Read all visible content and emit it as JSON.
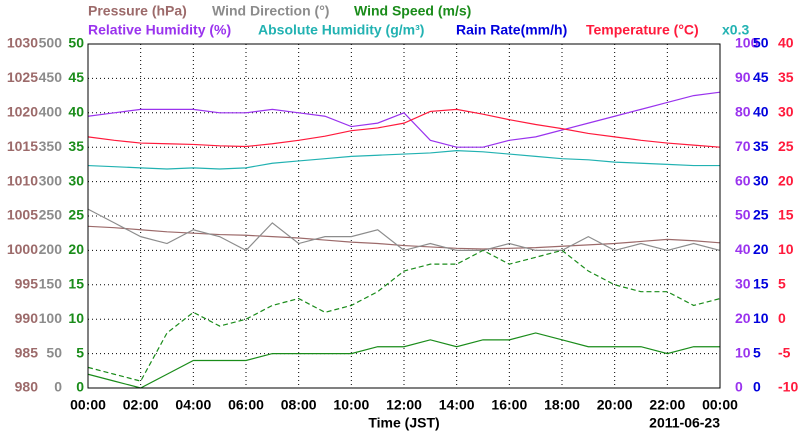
{
  "chart_data": {
    "type": "line",
    "xlabel": "Time (JST)",
    "date": "2011-06-23",
    "grid": true,
    "xlim": [
      0,
      24
    ],
    "xticks": [
      {
        "value": 0,
        "label": "00:00"
      },
      {
        "value": 2,
        "label": "02:00"
      },
      {
        "value": 4,
        "label": "04:00"
      },
      {
        "value": 6,
        "label": "06:00"
      },
      {
        "value": 8,
        "label": "08:00"
      },
      {
        "value": 10,
        "label": "10:00"
      },
      {
        "value": 12,
        "label": "12:00"
      },
      {
        "value": 14,
        "label": "14:00"
      },
      {
        "value": 16,
        "label": "16:00"
      },
      {
        "value": 18,
        "label": "18:00"
      },
      {
        "value": 20,
        "label": "20:00"
      },
      {
        "value": 22,
        "label": "22:00"
      },
      {
        "value": 24,
        "label": "00:00"
      }
    ],
    "axes": [
      {
        "name": "Pressure (hPa)",
        "color": "#9c6a6a",
        "side": "left",
        "ylim": [
          980,
          1030
        ],
        "yticks": [
          980,
          985,
          990,
          995,
          1000,
          1005,
          1010,
          1015,
          1020,
          1025,
          1030
        ]
      },
      {
        "name": "Wind Direction (°)",
        "color": "#8c8c8c",
        "side": "left",
        "ylim": [
          0,
          500
        ],
        "yticks": [
          0,
          50,
          100,
          150,
          200,
          250,
          300,
          350,
          400,
          450,
          500
        ]
      },
      {
        "name": "Wind Speed (m/s)",
        "color": "#1a8c1a",
        "side": "left",
        "ylim": [
          0,
          50
        ],
        "yticks": [
          0,
          5,
          10,
          15,
          20,
          25,
          30,
          35,
          40,
          45,
          50
        ]
      },
      {
        "name": "Relative Humidity (%)",
        "color": "#9a33ee",
        "side": "right",
        "ylim": [
          0,
          100
        ],
        "yticks": [
          0,
          10,
          20,
          30,
          40,
          50,
          60,
          70,
          80,
          90,
          100
        ]
      },
      {
        "name": "Absolute Humidity (g/m³)",
        "color": "#22b2b2",
        "side": "right",
        "ylim": [
          0,
          30
        ],
        "scale_label": "x0.3"
      },
      {
        "name": "Rain Rate(mm/h)",
        "color": "#0000dd",
        "side": "right",
        "ylim": [
          0,
          50
        ],
        "yticks": [
          0,
          5,
          10,
          15,
          20,
          25,
          30,
          35,
          40,
          45,
          50
        ]
      },
      {
        "name": "Temperature (°C)",
        "color": "#ff1a3c",
        "side": "right",
        "ylim": [
          -10,
          40
        ],
        "yticks": [
          -10,
          -5,
          0,
          5,
          10,
          15,
          20,
          25,
          30,
          35,
          40
        ]
      }
    ],
    "x": [
      0,
      1,
      2,
      3,
      4,
      5,
      6,
      7,
      8,
      9,
      10,
      11,
      12,
      13,
      14,
      15,
      16,
      17,
      18,
      19,
      20,
      21,
      22,
      23,
      24
    ],
    "series": [
      {
        "axis": 0,
        "color": "#9c6a6a",
        "style": "solid",
        "values": [
          1003.5,
          1003.3,
          1003,
          1002.7,
          1002.5,
          1002.3,
          1002.2,
          1002,
          1001.8,
          1001.5,
          1001.2,
          1001,
          1000.7,
          1000.5,
          1000.3,
          1000.2,
          1000.3,
          1000.4,
          1000.6,
          1000.8,
          1001,
          1001.3,
          1001.6,
          1001.4,
          1001.1
        ]
      },
      {
        "axis": 1,
        "color": "#8c8c8c",
        "style": "solid",
        "values": [
          260,
          240,
          220,
          210,
          230,
          220,
          200,
          240,
          210,
          220,
          220,
          230,
          200,
          210,
          200,
          200,
          210,
          200,
          200,
          220,
          200,
          210,
          200,
          210,
          200
        ]
      },
      {
        "axis": 2,
        "color": "#1a8c1a",
        "style": "dashed",
        "values": [
          3,
          2,
          1,
          8,
          11,
          9,
          10,
          12,
          13,
          11,
          12,
          14,
          17,
          18,
          18,
          20,
          18,
          19,
          20,
          17,
          15,
          14,
          14,
          12,
          13
        ]
      },
      {
        "axis": 2,
        "color": "#1a8c1a",
        "style": "solid",
        "values": [
          2,
          1,
          0,
          2,
          4,
          4,
          4,
          5,
          5,
          5,
          5,
          6,
          6,
          7,
          6,
          7,
          7,
          8,
          7,
          6,
          6,
          6,
          5,
          6,
          6
        ]
      },
      {
        "axis": 4,
        "color": "#22b2b2",
        "style": "solid",
        "values": [
          19.4,
          19.3,
          19.2,
          19.1,
          19.2,
          19.1,
          19.2,
          19.6,
          19.8,
          20,
          20.2,
          20.3,
          20.4,
          20.5,
          20.7,
          20.6,
          20.4,
          20.2,
          20,
          19.9,
          19.7,
          19.6,
          19.5,
          19.4,
          19.4
        ]
      },
      {
        "axis": 3,
        "color": "#9a33ee",
        "style": "solid",
        "values": [
          79,
          80,
          81,
          81,
          81,
          80,
          80,
          81,
          80,
          79,
          76,
          77,
          80,
          72,
          70,
          70,
          72,
          73,
          75,
          77,
          79,
          81,
          83,
          85,
          86
        ]
      },
      {
        "axis": 6,
        "color": "#ff1a3c",
        "style": "solid",
        "values": [
          26.5,
          26,
          25.6,
          25.5,
          25.4,
          25.2,
          25.1,
          25.5,
          26,
          26.6,
          27.4,
          27.8,
          28.5,
          30.2,
          30.5,
          29.8,
          29,
          28.3,
          27.7,
          27,
          26.5,
          26,
          25.6,
          25.3,
          25
        ]
      }
    ]
  }
}
